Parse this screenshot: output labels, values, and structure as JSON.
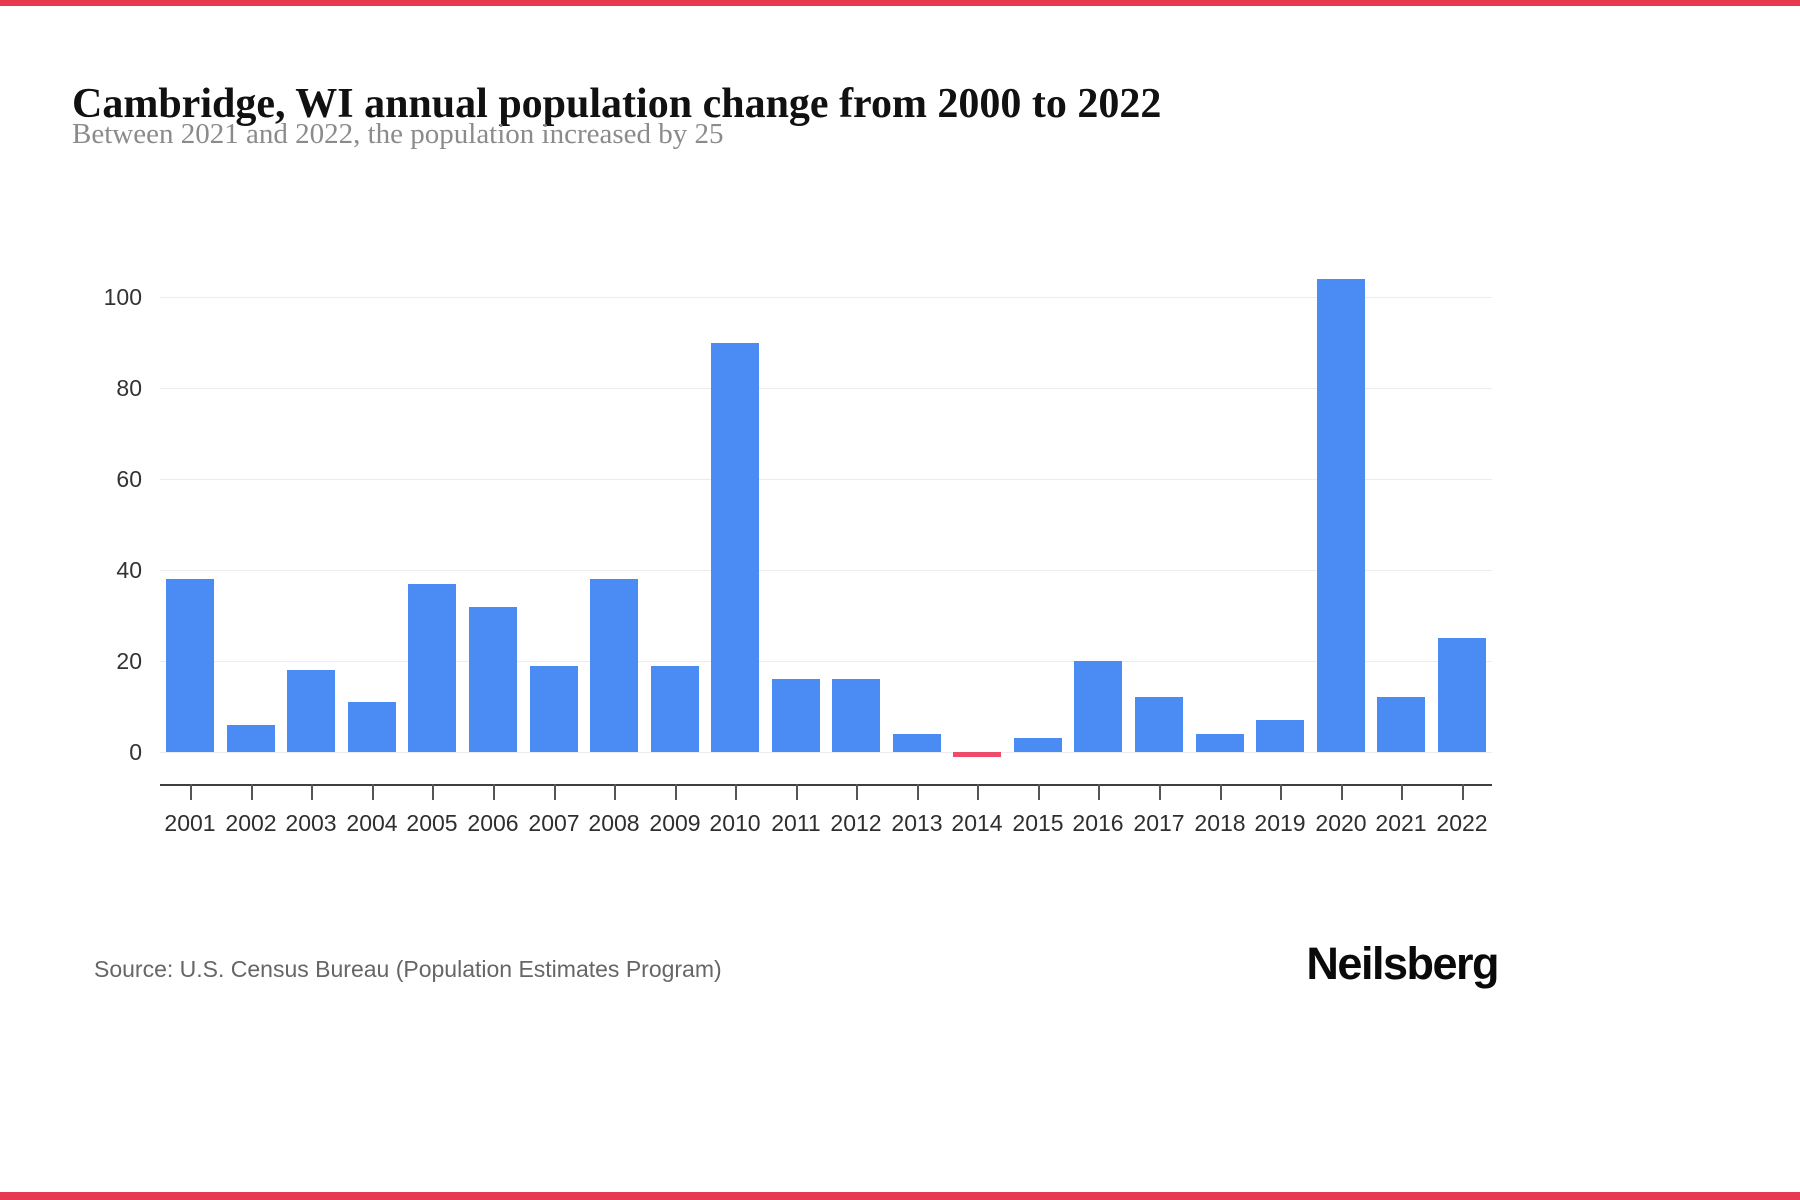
{
  "page": {
    "accent_color": "#e8384f",
    "title": "Cambridge, WI annual population change from 2000 to 2022",
    "subtitle": "Between 2021 and 2022, the population increased by 25",
    "source": "Source: U.S. Census Bureau (Population Estimates Program)",
    "brand": "Neilsberg"
  },
  "chart_data": {
    "type": "bar",
    "title": "Cambridge, WI annual population change from 2000 to 2022",
    "subtitle": "Between 2021 and 2022, the population increased by 25",
    "categories": [
      "2001",
      "2002",
      "2003",
      "2004",
      "2005",
      "2006",
      "2007",
      "2008",
      "2009",
      "2010",
      "2011",
      "2012",
      "2013",
      "2014",
      "2015",
      "2016",
      "2017",
      "2018",
      "2019",
      "2020",
      "2021",
      "2022"
    ],
    "values": [
      38,
      6,
      18,
      11,
      37,
      32,
      19,
      38,
      19,
      90,
      16,
      16,
      4,
      -1,
      3,
      20,
      12,
      4,
      7,
      104,
      12,
      25
    ],
    "xlabel": "",
    "ylabel": "",
    "yticks": [
      0,
      20,
      40,
      60,
      80,
      100
    ],
    "ylim": [
      -6,
      110
    ],
    "grid": "horizontal",
    "legend": "none",
    "bar_color": "#4b8bf4",
    "negative_bar_color": "#ef4b6a"
  }
}
